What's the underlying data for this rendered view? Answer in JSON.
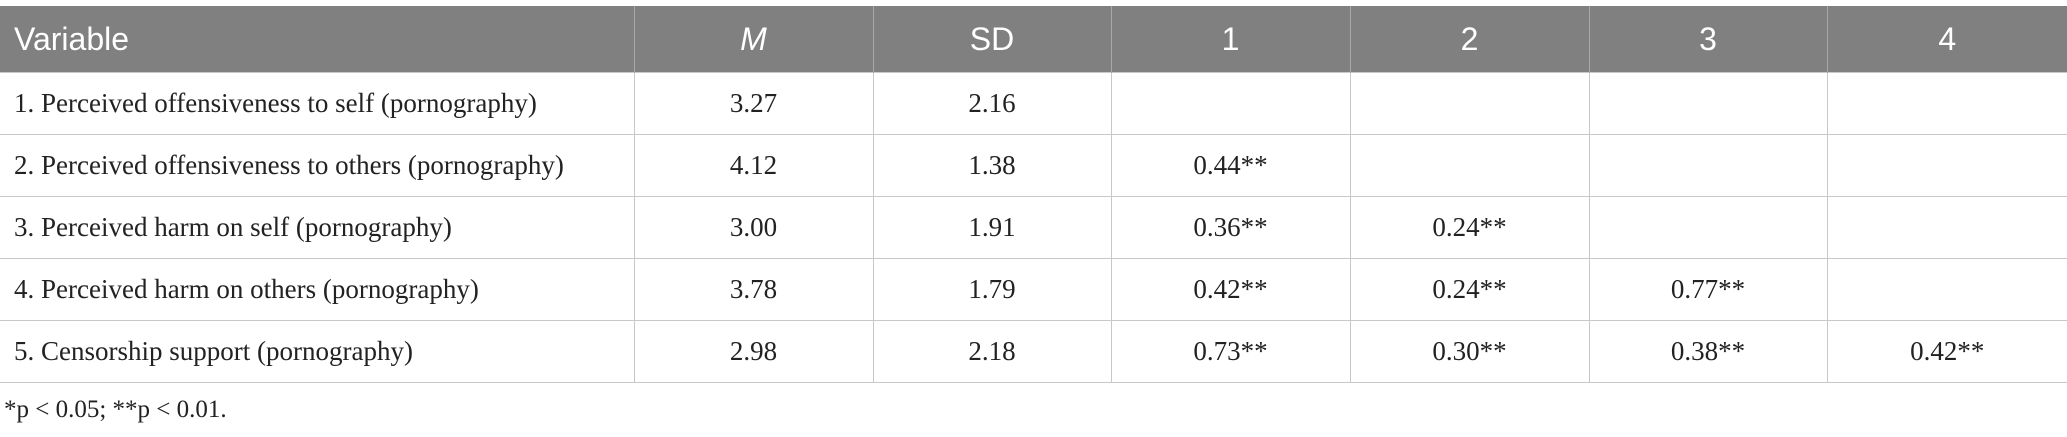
{
  "table": {
    "header": [
      "Variable",
      "M",
      "SD",
      "1",
      "2",
      "3",
      "4"
    ],
    "rows": [
      [
        "1. Perceived offensiveness to self (pornography)",
        "3.27",
        "2.16"
      ],
      [
        "2. Perceived offensiveness to others (pornography)",
        "4.12",
        "1.38",
        "0.44**"
      ],
      [
        "3. Perceived harm on self (pornography)",
        "3.00",
        "1.91",
        "0.36**",
        "0.24**"
      ],
      [
        "4. Perceived harm on others (pornography)",
        "3.78",
        "1.79",
        "0.42**",
        "0.24**",
        "0.77**"
      ],
      [
        "5. Censorship support (pornography)",
        "2.98",
        "2.18",
        "0.73**",
        "0.30**",
        "0.38**",
        "0.42**"
      ]
    ]
  },
  "footnote": "*p < 0.05; **p < 0.01."
}
